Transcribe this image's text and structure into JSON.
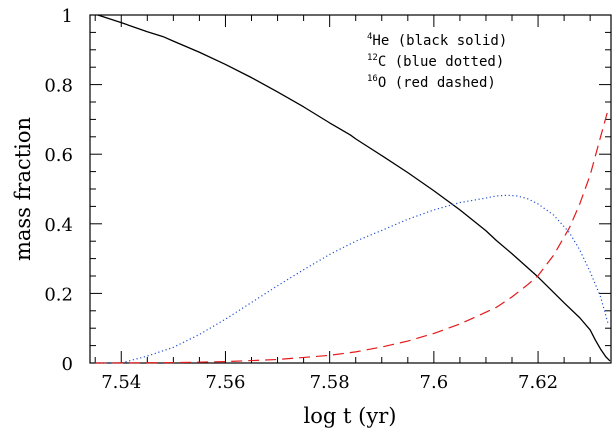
{
  "chart_data": {
    "type": "line",
    "xlabel": "log t (yr)",
    "ylabel": "mass fraction",
    "xlim": [
      7.534,
      7.634
    ],
    "ylim": [
      0,
      1
    ],
    "x_ticks": [
      7.54,
      7.56,
      7.58,
      7.6,
      7.62
    ],
    "x_tick_labels": [
      "7.54",
      "7.56",
      "7.58",
      "7.6",
      "7.62"
    ],
    "y_ticks": [
      0,
      0.2,
      0.4,
      0.6,
      0.8,
      1
    ],
    "y_tick_labels": [
      "0",
      "0.2",
      "0.4",
      "0.6",
      "0.8",
      "1"
    ],
    "legend_position": "top-right",
    "legend": [
      {
        "sup": "4",
        "text": "He (black solid)"
      },
      {
        "sup": "12",
        "text": "C (blue dotted)"
      },
      {
        "sup": "16",
        "text": "O (red dashed)"
      }
    ],
    "series": [
      {
        "color": "#000000",
        "style": "solid",
        "points": [
          [
            7.5355,
            1.0
          ],
          [
            7.54,
            0.978
          ],
          [
            7.545,
            0.952
          ],
          [
            7.548,
            0.938
          ],
          [
            7.55,
            0.925
          ],
          [
            7.555,
            0.893
          ],
          [
            7.56,
            0.858
          ],
          [
            7.565,
            0.82
          ],
          [
            7.57,
            0.779
          ],
          [
            7.575,
            0.736
          ],
          [
            7.58,
            0.69
          ],
          [
            7.584,
            0.655
          ],
          [
            7.585,
            0.644
          ],
          [
            7.59,
            0.596
          ],
          [
            7.595,
            0.547
          ],
          [
            7.6,
            0.495
          ],
          [
            7.605,
            0.44
          ],
          [
            7.61,
            0.38
          ],
          [
            7.612,
            0.352
          ],
          [
            7.615,
            0.314
          ],
          [
            7.62,
            0.247
          ],
          [
            7.625,
            0.173
          ],
          [
            7.628,
            0.13
          ],
          [
            7.63,
            0.095
          ],
          [
            7.631,
            0.066
          ],
          [
            7.632,
            0.04
          ],
          [
            7.633,
            0.018
          ],
          [
            7.6338,
            0.006
          ]
        ]
      },
      {
        "color": "#1f4fcf",
        "style": "dotted",
        "points": [
          [
            7.535,
            0.0
          ],
          [
            7.54,
            0.0
          ],
          [
            7.545,
            0.02
          ],
          [
            7.55,
            0.045
          ],
          [
            7.555,
            0.082
          ],
          [
            7.56,
            0.126
          ],
          [
            7.565,
            0.174
          ],
          [
            7.57,
            0.222
          ],
          [
            7.575,
            0.268
          ],
          [
            7.58,
            0.312
          ],
          [
            7.585,
            0.35
          ],
          [
            7.59,
            0.381
          ],
          [
            7.595,
            0.413
          ],
          [
            7.6,
            0.44
          ],
          [
            7.605,
            0.461
          ],
          [
            7.61,
            0.474
          ],
          [
            7.612,
            0.48
          ],
          [
            7.614,
            0.482
          ],
          [
            7.616,
            0.48
          ],
          [
            7.618,
            0.472
          ],
          [
            7.62,
            0.457
          ],
          [
            7.623,
            0.425
          ],
          [
            7.626,
            0.375
          ],
          [
            7.628,
            0.325
          ],
          [
            7.63,
            0.262
          ],
          [
            7.632,
            0.19
          ],
          [
            7.6335,
            0.11
          ]
        ]
      },
      {
        "color": "#e31a1c",
        "style": "dashed",
        "points": [
          [
            7.535,
            0.0
          ],
          [
            7.55,
            0.001
          ],
          [
            7.56,
            0.004
          ],
          [
            7.57,
            0.01
          ],
          [
            7.58,
            0.022
          ],
          [
            7.585,
            0.032
          ],
          [
            7.59,
            0.046
          ],
          [
            7.595,
            0.063
          ],
          [
            7.6,
            0.085
          ],
          [
            7.605,
            0.112
          ],
          [
            7.61,
            0.146
          ],
          [
            7.612,
            0.16
          ],
          [
            7.615,
            0.19
          ],
          [
            7.618,
            0.225
          ],
          [
            7.62,
            0.251
          ],
          [
            7.623,
            0.31
          ],
          [
            7.626,
            0.388
          ],
          [
            7.628,
            0.457
          ],
          [
            7.63,
            0.54
          ],
          [
            7.632,
            0.65
          ],
          [
            7.6335,
            0.731
          ]
        ]
      }
    ]
  }
}
